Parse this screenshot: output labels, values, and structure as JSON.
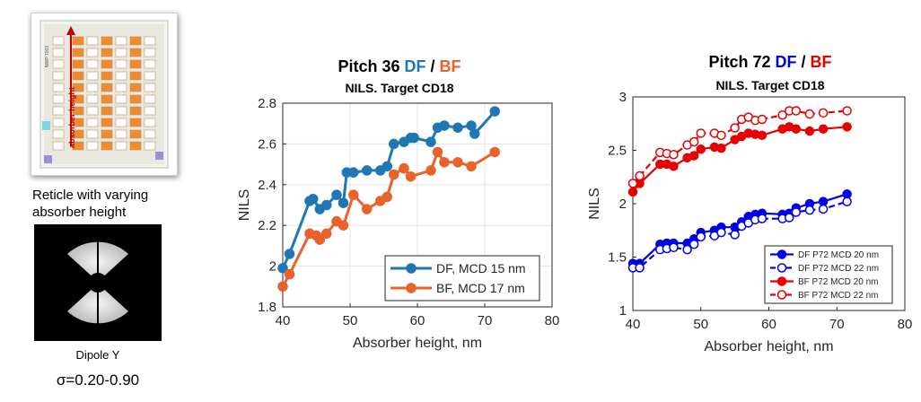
{
  "left_panel": {
    "reticle_vertical_label": "absorber height",
    "reticle_side_text": "NWP 7003",
    "reticle_caption_line1": "Reticle with varying",
    "reticle_caption_line2": "absorber height",
    "dipole_label": "Dipole Y",
    "sigma_label": "σ=0.20-0.90"
  },
  "colors": {
    "df_mid": "#1f77b4",
    "bf_mid": "#e8622a",
    "df_right": "#0000e6",
    "bf_right": "#e60000",
    "reticle_orange": "#f08a2c",
    "reticle_red_arrow": "#c00000"
  },
  "chart_data": [
    {
      "type": "line",
      "title_prefix": "Pitch 36 ",
      "title_df": "DF",
      "title_sep": " / ",
      "title_bf": "BF",
      "subtitle": "NILS. Target CD18",
      "xlabel": "Absorber height, nm",
      "ylabel": "NILS",
      "xlim": [
        40,
        80
      ],
      "ylim": [
        1.8,
        2.8
      ],
      "xticks": [
        40,
        50,
        60,
        70,
        80
      ],
      "yticks": [
        1.8,
        2.0,
        2.2,
        2.4,
        2.6,
        2.8
      ],
      "ytick_labels": [
        "1.8",
        "2",
        "2.2",
        "2.4",
        "2.6",
        "2.8"
      ],
      "grid": true,
      "legend_position": "bottom-right",
      "series": [
        {
          "name": "DF, MCD 15 nm",
          "color": "#1f77b4",
          "dashed": false,
          "filled": true,
          "x": [
            40,
            41,
            44,
            44.5,
            45.5,
            46.5,
            48,
            49,
            49.5,
            50.5,
            52.5,
            54.5,
            55.5,
            56.5,
            58,
            59,
            59.5,
            62,
            63,
            64,
            66,
            68,
            68.5,
            71.5
          ],
          "y": [
            1.99,
            2.06,
            2.32,
            2.33,
            2.28,
            2.3,
            2.35,
            2.31,
            2.46,
            2.46,
            2.47,
            2.47,
            2.49,
            2.6,
            2.61,
            2.63,
            2.63,
            2.61,
            2.68,
            2.69,
            2.68,
            2.69,
            2.65,
            2.76
          ]
        },
        {
          "name": "BF, MCD 17 nm",
          "color": "#e8622a",
          "dashed": false,
          "filled": true,
          "x": [
            40,
            41,
            44,
            45,
            45.5,
            46.5,
            48,
            49,
            50.5,
            52.5,
            54.5,
            55.5,
            56.5,
            58,
            59,
            62,
            63,
            64,
            66,
            68,
            71.5
          ],
          "y": [
            1.9,
            1.96,
            2.16,
            2.15,
            2.13,
            2.16,
            2.22,
            2.2,
            2.35,
            2.28,
            2.32,
            2.34,
            2.45,
            2.48,
            2.44,
            2.47,
            2.56,
            2.51,
            2.51,
            2.49,
            2.56
          ]
        }
      ]
    },
    {
      "type": "line",
      "title_prefix": "Pitch 72 ",
      "title_df": "DF",
      "title_sep": " / ",
      "title_bf": "BF",
      "subtitle": "NILS. Target CD18",
      "xlabel": "Absorber height, nm",
      "ylabel": "NILS",
      "xlim": [
        40,
        80
      ],
      "ylim": [
        1,
        3
      ],
      "xticks": [
        40,
        50,
        60,
        70,
        80
      ],
      "yticks": [
        1,
        1.5,
        2,
        2.5,
        3
      ],
      "ytick_labels": [
        "1",
        "1.5",
        "2",
        "2.5",
        "3"
      ],
      "grid": false,
      "legend_position": "bottom-right",
      "series": [
        {
          "name": "DF P72 MCD 20 nm",
          "color": "#0000e6",
          "dashed": false,
          "filled": true,
          "x": [
            40,
            41,
            44,
            45,
            46,
            48,
            49,
            50,
            52,
            53,
            55,
            56,
            57,
            58,
            59,
            62,
            63,
            64,
            66,
            68,
            71.5
          ],
          "y": [
            1.44,
            1.44,
            1.62,
            1.63,
            1.63,
            1.63,
            1.67,
            1.73,
            1.75,
            1.78,
            1.78,
            1.83,
            1.88,
            1.9,
            1.91,
            1.9,
            1.91,
            1.96,
            2.0,
            2.02,
            2.09
          ]
        },
        {
          "name": "DF P72 MCD 22 nm",
          "color": "#0000e6",
          "dashed": true,
          "filled": false,
          "x": [
            40,
            41,
            44,
            45,
            46,
            48,
            49,
            50,
            52,
            53,
            55,
            56,
            57,
            58,
            59,
            62,
            63,
            64,
            66,
            68,
            71.5
          ],
          "y": [
            1.4,
            1.4,
            1.57,
            1.58,
            1.59,
            1.57,
            1.62,
            1.69,
            1.7,
            1.73,
            1.71,
            1.79,
            1.82,
            1.85,
            1.86,
            1.86,
            1.87,
            1.92,
            1.94,
            1.95,
            2.02
          ]
        },
        {
          "name": "BF P72 MCD 20 nm",
          "color": "#e60000",
          "dashed": false,
          "filled": true,
          "x": [
            40,
            41,
            44,
            45,
            46,
            48,
            49,
            50,
            52,
            53,
            55,
            56,
            57,
            58,
            59,
            62,
            63,
            64,
            66,
            68,
            71.5
          ],
          "y": [
            2.11,
            2.19,
            2.37,
            2.37,
            2.35,
            2.43,
            2.45,
            2.51,
            2.53,
            2.52,
            2.6,
            2.63,
            2.66,
            2.65,
            2.64,
            2.7,
            2.72,
            2.7,
            2.68,
            2.7,
            2.72
          ]
        },
        {
          "name": "BF P72 MCD 22 nm",
          "color": "#e60000",
          "dashed": true,
          "filled": false,
          "x": [
            40,
            41,
            44,
            45,
            46,
            48,
            49,
            50,
            52,
            53,
            55,
            56,
            57,
            58,
            59,
            62,
            63,
            64,
            66,
            68,
            71.5
          ],
          "y": [
            2.19,
            2.26,
            2.48,
            2.47,
            2.46,
            2.55,
            2.58,
            2.66,
            2.66,
            2.64,
            2.71,
            2.79,
            2.81,
            2.78,
            2.79,
            2.83,
            2.87,
            2.87,
            2.84,
            2.85,
            2.87
          ]
        }
      ]
    }
  ]
}
